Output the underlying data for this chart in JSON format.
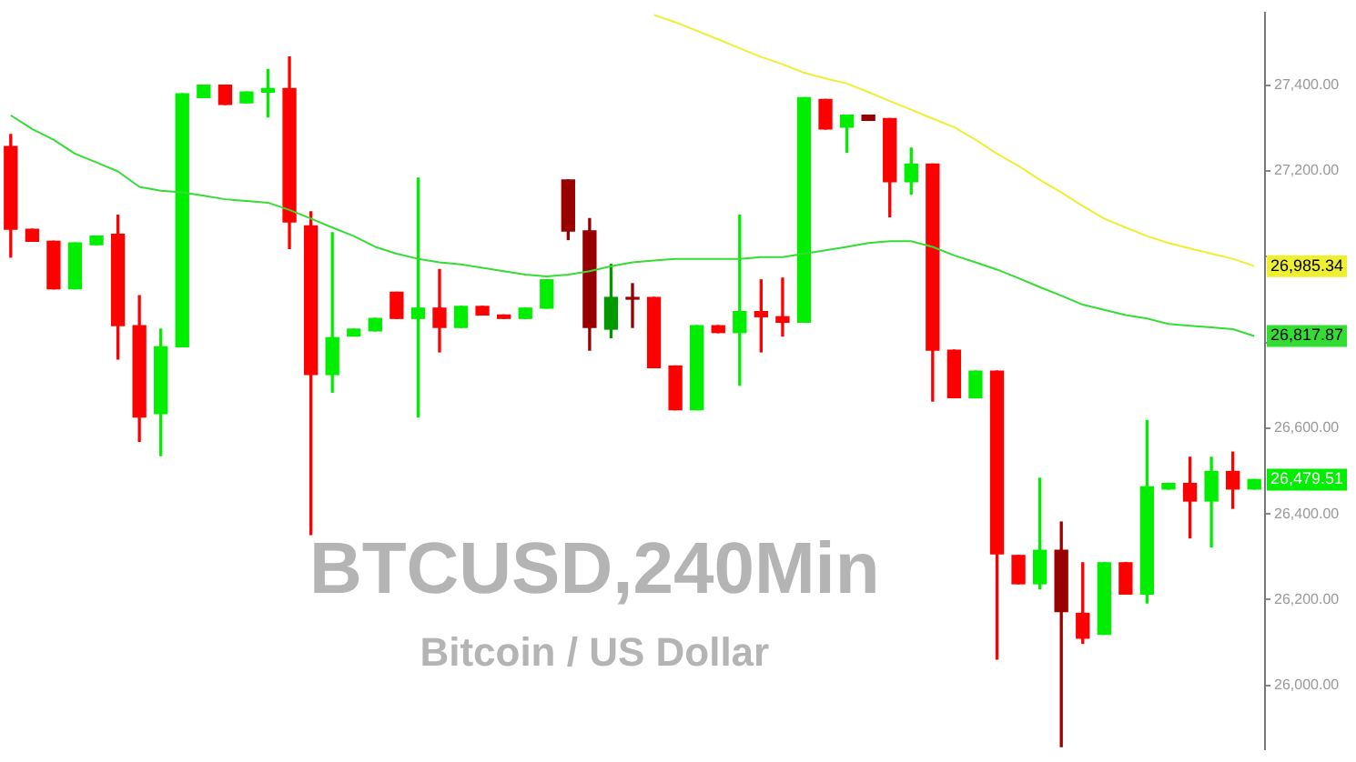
{
  "chart_data": {
    "type": "candlestick",
    "title": "BTCUSD,240Min",
    "subtitle": "Bitcoin / US Dollar",
    "categories": [
      null,
      null,
      null,
      null,
      null,
      null,
      null,
      null,
      null,
      null,
      null,
      null,
      null,
      null,
      null,
      null,
      null,
      null,
      null,
      null,
      null,
      null,
      null,
      null,
      null,
      null,
      null,
      null,
      null,
      null,
      null,
      null,
      null,
      null,
      null,
      null,
      null,
      null,
      null,
      null,
      null,
      null,
      null,
      null,
      null,
      null,
      null,
      null,
      null,
      null,
      null,
      null,
      null,
      null,
      null,
      null,
      null,
      null,
      null
    ],
    "ylim": [
      25850,
      27570
    ],
    "yticks": [
      {
        "value": 26000,
        "label": "26,000.00"
      },
      {
        "value": 26200,
        "label": "26,200.00"
      },
      {
        "value": 26400,
        "label": "26,400.00"
      },
      {
        "value": 26600,
        "label": "26,600.00"
      },
      {
        "value": 26800,
        "label": null
      },
      {
        "value": 27000,
        "label": null
      },
      {
        "value": 27200,
        "label": "27,200.00"
      },
      {
        "value": 27400,
        "label": "27,400.00"
      }
    ],
    "grid": false,
    "legend": false,
    "series": [
      {
        "ohlc": [
          [
            27257,
            27285,
            26999,
            27064
          ],
          [
            27064,
            27064,
            27036,
            27036
          ],
          [
            27036,
            27036,
            26925,
            26925
          ],
          [
            26925,
            27032,
            26925,
            27032
          ],
          [
            27028,
            27048,
            27028,
            27048
          ],
          [
            27052,
            27097,
            26761,
            26839
          ],
          [
            26839,
            26909,
            26569,
            26626
          ],
          [
            26634,
            26831,
            26536,
            26790
          ],
          [
            26790,
            27380,
            26790,
            27380
          ],
          [
            27371,
            27400,
            27371,
            27400
          ],
          [
            27400,
            27400,
            27355,
            27355
          ],
          [
            27359,
            27384,
            27359,
            27384
          ],
          [
            27384,
            27437,
            27326,
            27392
          ],
          [
            27392,
            27466,
            27019,
            27081
          ],
          [
            27072,
            27105,
            26352,
            26725
          ],
          [
            26725,
            27056,
            26684,
            26811
          ],
          [
            26815,
            26831,
            26815,
            26831
          ],
          [
            26827,
            26856,
            26827,
            26856
          ],
          [
            26917,
            26917,
            26856,
            26856
          ],
          [
            26856,
            27183,
            26626,
            26880
          ],
          [
            26880,
            26970,
            26778,
            26835
          ],
          [
            26835,
            26884,
            26835,
            26884
          ],
          [
            26884,
            26884,
            26864,
            26864
          ],
          [
            26864,
            26864,
            26856,
            26856
          ],
          [
            26856,
            26880,
            26856,
            26880
          ],
          [
            26880,
            26946,
            26880,
            26946
          ],
          [
            27179,
            27179,
            27040,
            27060
          ],
          [
            27060,
            27089,
            26782,
            26835
          ],
          [
            26831,
            26982,
            26811,
            26905
          ],
          [
            26905,
            26937,
            26835,
            26901
          ],
          [
            26905,
            26905,
            26741,
            26741
          ],
          [
            26745,
            26745,
            26643,
            26643
          ],
          [
            26643,
            26839,
            26643,
            26839
          ],
          [
            26839,
            26839,
            26823,
            26823
          ],
          [
            26823,
            27097,
            26700,
            26872
          ],
          [
            26872,
            26946,
            26778,
            26860
          ],
          [
            26860,
            26950,
            26815,
            26847
          ],
          [
            26847,
            27371,
            26847,
            27371
          ],
          [
            27367,
            27367,
            27298,
            27298
          ],
          [
            27302,
            27330,
            27244,
            27330
          ],
          [
            27330,
            27330,
            27318,
            27318
          ],
          [
            27322,
            27322,
            27093,
            27175
          ],
          [
            27175,
            27253,
            27146,
            27216
          ],
          [
            27216,
            27216,
            26663,
            26782
          ],
          [
            26782,
            26782,
            26671,
            26671
          ],
          [
            26671,
            26733,
            26671,
            26733
          ],
          [
            26733,
            26733,
            26061,
            26307
          ],
          [
            26303,
            26303,
            26237,
            26237
          ],
          [
            26237,
            26483,
            26225,
            26315
          ],
          [
            26315,
            26381,
            25857,
            26172
          ],
          [
            26168,
            26286,
            26098,
            26110
          ],
          [
            26119,
            26286,
            26119,
            26286
          ],
          [
            26286,
            26286,
            26213,
            26213
          ],
          [
            26213,
            26618,
            26192,
            26463
          ],
          [
            26458,
            26471,
            26458,
            26471
          ],
          [
            26471,
            26532,
            26344,
            26430
          ],
          [
            26430,
            26532,
            26323,
            26499
          ],
          [
            26499,
            26544,
            26413,
            26458
          ],
          [
            26458,
            26480,
            26458,
            26480
          ]
        ],
        "colors": [
          "#ff0000",
          "#ff0000",
          "#ff0000",
          "#00ee00",
          "#00ee00",
          "#ff0000",
          "#ff0000",
          "#00ee00",
          "#00ee00",
          "#00ee00",
          "#ff0000",
          "#00ee00",
          "#00ee00",
          "#ff0000",
          "#ff0000",
          "#00ee00",
          "#00ee00",
          "#00ee00",
          "#ff0000",
          "#00ee00",
          "#ff0000",
          "#00ee00",
          "#ff0000",
          "#ff0000",
          "#00ee00",
          "#00ee00",
          "#990000",
          "#990000",
          "#009900",
          "#990000",
          "#ff0000",
          "#ff0000",
          "#00ee00",
          "#ff0000",
          "#00ee00",
          "#ff0000",
          "#ff0000",
          "#00ee00",
          "#ff0000",
          "#00ee00",
          "#990000",
          "#ff0000",
          "#00ee00",
          "#ff0000",
          "#ff0000",
          "#00ee00",
          "#ff0000",
          "#ff0000",
          "#00ee00",
          "#990000",
          "#ff0000",
          "#00ee00",
          "#ff0000",
          "#00ee00",
          "#00ee00",
          "#ff0000",
          "#00ee00",
          "#ff0000",
          "#00ee00"
        ]
      },
      {
        "type": "line",
        "color": "#33dd33",
        "values": [
          27330,
          27298,
          27273,
          27240,
          27220,
          27199,
          27163,
          27154,
          27150,
          27142,
          27134,
          27130,
          27126,
          27109,
          27089,
          27068,
          27048,
          27023,
          27007,
          26995,
          26987,
          26982,
          26974,
          26966,
          26958,
          26954,
          26958,
          26966,
          26978,
          26987,
          26991,
          26995,
          26995,
          26995,
          26995,
          26999,
          26999,
          27007,
          27015,
          27023,
          27032,
          27036,
          27036,
          27023,
          27003,
          26987,
          26970,
          26950,
          26929,
          26909,
          26888,
          26876,
          26864,
          26856,
          26843,
          26839,
          26835,
          26831,
          26815
        ]
      },
      {
        "type": "line",
        "color": "#eeee33",
        "values": [
          null,
          null,
          null,
          null,
          null,
          null,
          null,
          null,
          null,
          null,
          null,
          null,
          null,
          null,
          null,
          null,
          null,
          null,
          null,
          null,
          null,
          null,
          null,
          null,
          null,
          null,
          null,
          null,
          null,
          null,
          27564,
          27547,
          27527,
          27507,
          27486,
          27466,
          27449,
          27429,
          27416,
          27404,
          27384,
          27363,
          27343,
          27322,
          27302,
          27273,
          27240,
          27212,
          27179,
          27150,
          27118,
          27089,
          27068,
          27048,
          27032,
          27019,
          27007,
          26995,
          26978
        ]
      }
    ],
    "annotations": [
      "26,985.34",
      "26,817.87",
      "26,479.51"
    ]
  }
}
